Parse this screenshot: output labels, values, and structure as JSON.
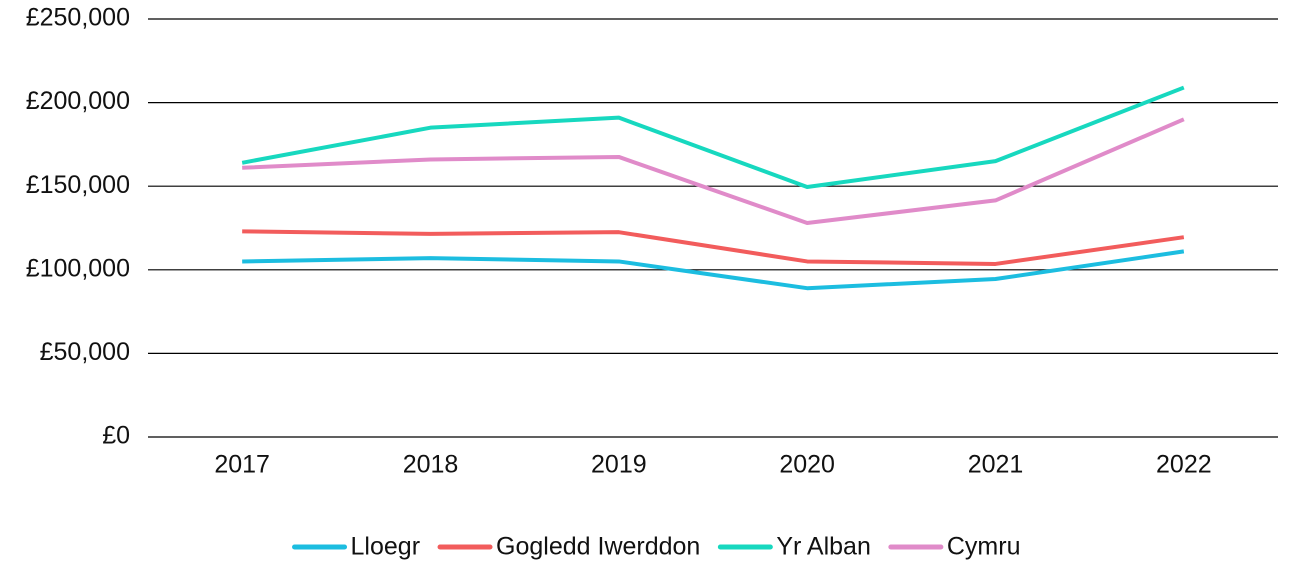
{
  "chart_data": {
    "type": "line",
    "categories": [
      "2017",
      "2018",
      "2019",
      "2020",
      "2021",
      "2022"
    ],
    "series": [
      {
        "name": "Lloegr",
        "color": "#1cbde0",
        "values": [
          105000,
          107000,
          105000,
          89000,
          94500,
          111000
        ]
      },
      {
        "name": "Gogledd Iwerddon",
        "color": "#f25c5c",
        "values": [
          123000,
          121500,
          122500,
          105000,
          103500,
          119500
        ]
      },
      {
        "name": "Yr Alban",
        "color": "#17d8bf",
        "values": [
          164000,
          185000,
          191000,
          149500,
          165000,
          209000
        ]
      },
      {
        "name": "Cymru",
        "color": "#e08bc9",
        "values": [
          161000,
          166000,
          167500,
          128000,
          141500,
          190000
        ]
      }
    ],
    "ylim": [
      0,
      250000
    ],
    "yticks": [
      {
        "value": 0,
        "label": "£0"
      },
      {
        "value": 50000,
        "label": "£50,000"
      },
      {
        "value": 100000,
        "label": "£100,000"
      },
      {
        "value": 150000,
        "label": "£150,000"
      },
      {
        "value": 200000,
        "label": "£200,000"
      },
      {
        "value": 250000,
        "label": "£250,000"
      }
    ],
    "grid": true,
    "legend": "bottom"
  }
}
